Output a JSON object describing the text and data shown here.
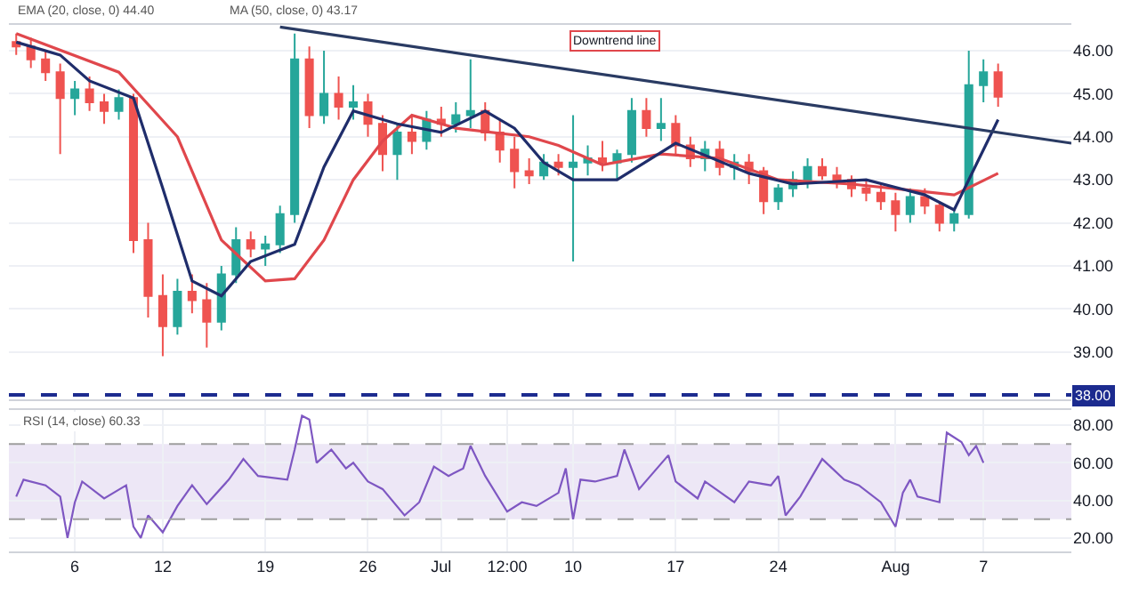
{
  "chart_data": [
    {
      "type": "candlestick",
      "x": [
        "--06-02",
        "--06-03",
        "--06-04",
        "--06-05",
        "--06-06",
        "--06-07",
        "--06-08",
        "--06-09",
        "--06-10",
        "--06-11",
        "--06-12",
        "--06-13",
        "--06-14",
        "--06-15",
        "--06-16",
        "--06-17",
        "--06-18",
        "--06-19",
        "--06-20",
        "--06-21",
        "--06-22",
        "--06-23",
        "--06-24",
        "--06-25",
        "--06-26",
        "--06-27",
        "--06-28",
        "--06-29",
        "--06-30",
        "--07-01",
        "--07-02",
        "--07-03",
        "--07-04",
        "--07-05",
        "--07-06",
        "--07-07",
        "--07-08",
        "--07-09",
        "--07-10",
        "--07-11",
        "--07-12",
        "--07-13",
        "--07-14",
        "--07-15",
        "--07-16",
        "--07-17",
        "--07-18",
        "--07-19",
        "--07-20",
        "--07-21",
        "--07-22",
        "--07-23",
        "--07-24",
        "--07-25",
        "--07-26",
        "--07-27",
        "--07-28",
        "--07-29",
        "--07-30",
        "--07-31",
        "--08-01",
        "--08-02",
        "--08-03",
        "--08-04",
        "--08-05",
        "--08-06",
        "--08-07",
        "--08-08"
      ],
      "ohlc": [
        [
          46.2,
          46.4,
          45.9,
          46.1
        ],
        [
          46.1,
          46.3,
          45.6,
          45.8
        ],
        [
          45.8,
          46.0,
          45.3,
          45.5
        ],
        [
          45.5,
          45.7,
          43.6,
          44.9
        ],
        [
          44.9,
          45.3,
          44.5,
          45.1
        ],
        [
          45.1,
          45.4,
          44.6,
          44.8
        ],
        [
          44.8,
          45.0,
          44.3,
          44.6
        ],
        [
          44.6,
          45.1,
          44.4,
          44.9
        ],
        [
          44.9,
          45.0,
          41.3,
          41.6
        ],
        [
          41.6,
          42.0,
          39.8,
          40.3
        ],
        [
          40.3,
          40.8,
          38.9,
          39.6
        ],
        [
          39.6,
          40.7,
          39.4,
          40.4
        ],
        [
          40.4,
          40.8,
          39.9,
          40.2
        ],
        [
          40.2,
          40.6,
          39.1,
          39.7
        ],
        [
          39.7,
          41.0,
          39.5,
          40.8
        ],
        [
          40.8,
          41.9,
          40.6,
          41.6
        ],
        [
          41.6,
          41.8,
          41.2,
          41.4
        ],
        [
          41.4,
          41.7,
          41.0,
          41.5
        ],
        [
          41.5,
          42.4,
          41.3,
          42.2
        ],
        [
          42.2,
          46.4,
          42.0,
          45.8
        ],
        [
          45.8,
          46.1,
          44.2,
          44.5
        ],
        [
          44.5,
          46.0,
          44.3,
          45.0
        ],
        [
          45.0,
          45.4,
          44.4,
          44.7
        ],
        [
          44.7,
          45.2,
          44.4,
          44.8
        ],
        [
          44.8,
          45.0,
          44.0,
          44.3
        ],
        [
          44.3,
          44.5,
          43.2,
          43.6
        ],
        [
          43.6,
          44.3,
          43.0,
          44.1
        ],
        [
          44.1,
          44.5,
          43.6,
          43.9
        ],
        [
          43.9,
          44.6,
          43.7,
          44.4
        ],
        [
          44.4,
          44.7,
          44.0,
          44.3
        ],
        [
          44.3,
          44.8,
          44.1,
          44.5
        ],
        [
          44.5,
          45.8,
          44.2,
          44.6
        ],
        [
          44.6,
          44.8,
          43.9,
          44.1
        ],
        [
          44.1,
          44.4,
          43.4,
          43.7
        ],
        [
          43.7,
          44.0,
          42.8,
          43.2
        ],
        [
          43.2,
          43.5,
          42.9,
          43.1
        ],
        [
          43.1,
          43.6,
          43.0,
          43.4
        ],
        [
          43.4,
          43.6,
          43.1,
          43.3
        ],
        [
          43.3,
          44.5,
          41.1,
          43.4
        ],
        [
          43.4,
          43.8,
          43.1,
          43.5
        ],
        [
          43.5,
          43.9,
          43.2,
          43.4
        ],
        [
          43.4,
          43.7,
          43.0,
          43.6
        ],
        [
          43.6,
          44.9,
          43.4,
          44.6
        ],
        [
          44.6,
          44.9,
          44.0,
          44.2
        ],
        [
          44.2,
          44.9,
          43.9,
          44.3
        ],
        [
          44.3,
          44.5,
          43.6,
          43.8
        ],
        [
          43.8,
          44.0,
          43.3,
          43.5
        ],
        [
          43.5,
          43.9,
          43.2,
          43.7
        ],
        [
          43.7,
          43.9,
          43.1,
          43.3
        ],
        [
          43.3,
          43.6,
          43.0,
          43.4
        ],
        [
          43.4,
          43.6,
          42.9,
          43.2
        ],
        [
          43.2,
          43.3,
          42.2,
          42.5
        ],
        [
          42.5,
          42.9,
          42.3,
          42.8
        ],
        [
          42.8,
          43.2,
          42.6,
          43.0
        ],
        [
          43.0,
          43.5,
          42.8,
          43.3
        ],
        [
          43.3,
          43.5,
          43.0,
          43.1
        ],
        [
          43.1,
          43.3,
          42.8,
          43.0
        ],
        [
          43.0,
          43.1,
          42.6,
          42.8
        ],
        [
          42.8,
          43.0,
          42.5,
          42.7
        ],
        [
          42.7,
          42.9,
          42.3,
          42.5
        ],
        [
          42.5,
          42.7,
          41.8,
          42.2
        ],
        [
          42.2,
          42.8,
          42.0,
          42.6
        ],
        [
          42.6,
          42.8,
          42.2,
          42.4
        ],
        [
          42.4,
          42.5,
          41.8,
          42.0
        ],
        [
          42.0,
          42.3,
          41.8,
          42.2
        ],
        [
          42.2,
          46.0,
          42.1,
          45.2
        ],
        [
          45.2,
          45.8,
          44.8,
          45.5
        ],
        [
          45.5,
          45.7,
          44.7,
          44.93
        ]
      ],
      "colors": [
        "#ef5350",
        "#ef5350",
        "#ef5350",
        "#ef5350",
        "#26a69a",
        "#ef5350",
        "#ef5350",
        "#26a69a",
        "#ef5350",
        "#ef5350",
        "#ef5350",
        "#26a69a",
        "#ef5350",
        "#ef5350",
        "#26a69a",
        "#26a69a",
        "#ef5350",
        "#26a69a",
        "#26a69a",
        "#26a69a",
        "#ef5350",
        "#26a69a",
        "#ef5350",
        "#26a69a",
        "#ef5350",
        "#ef5350",
        "#26a69a",
        "#ef5350",
        "#26a69a",
        "#ef5350",
        "#26a69a",
        "#26a69a",
        "#ef5350",
        "#ef5350",
        "#ef5350",
        "#ef5350",
        "#26a69a",
        "#ef5350",
        "#26a69a",
        "#26a69a",
        "#ef5350",
        "#26a69a",
        "#26a69a",
        "#ef5350",
        "#26a69a",
        "#ef5350",
        "#ef5350",
        "#26a69a",
        "#ef5350",
        "#26a69a",
        "#ef5350",
        "#ef5350",
        "#26a69a",
        "#26a69a",
        "#26a69a",
        "#ef5350",
        "#ef5350",
        "#ef5350",
        "#ef5350",
        "#ef5350",
        "#ef5350",
        "#26a69a",
        "#ef5350",
        "#ef5350",
        "#26a69a",
        "#26a69a",
        "#26a69a",
        "#ef5350"
      ],
      "series": [
        {
          "type": "line",
          "color": "#e0474c",
          "x": [
            "--06-02",
            "--06-09",
            "--06-13",
            "--06-16",
            "--06-19",
            "--06-21",
            "--06-23",
            "--06-25",
            "--06-27",
            "--06-29",
            "--07-02",
            "--07-07",
            "--07-09",
            "--07-12",
            "--07-16",
            "--07-20",
            "--07-24",
            "--07-29",
            "--08-05",
            "--08-08"
          ],
          "values": [
            46.4,
            45.5,
            44.0,
            41.6,
            40.65,
            40.7,
            41.6,
            43.0,
            43.9,
            44.5,
            44.2,
            44.0,
            43.8,
            43.35,
            43.6,
            43.5,
            43.0,
            42.9,
            42.65,
            43.15
          ]
        },
        {
          "type": "line",
          "color": "#1f2d6b",
          "x": [
            "--06-02",
            "--06-05",
            "--06-07",
            "--06-10",
            "--06-12",
            "--06-14",
            "--06-16",
            "--06-18",
            "--06-21",
            "--06-23",
            "--06-25",
            "--06-28",
            "--07-01",
            "--07-04",
            "--07-06",
            "--07-08",
            "--07-10",
            "--07-13",
            "--07-17",
            "--07-22",
            "--07-25",
            "--07-30",
            "--08-03",
            "--08-05",
            "--08-08"
          ],
          "values": [
            46.2,
            45.9,
            45.3,
            44.9,
            42.8,
            40.65,
            40.3,
            41.1,
            41.5,
            43.3,
            44.6,
            44.3,
            44.1,
            44.6,
            44.2,
            43.4,
            43.0,
            43.0,
            43.85,
            43.15,
            42.9,
            43.0,
            42.65,
            42.3,
            44.4
          ]
        },
        {
          "type": "line",
          "color": "#2a3b63",
          "x": [
            "--06-20",
            "--08-13"
          ],
          "values": [
            46.55,
            43.85
          ]
        }
      ],
      "xlim": [
        "--06-01T12:00",
        "--08-13"
      ],
      "ylim": [
        37.9,
        46.6
      ],
      "yticks": [
        {
          "value": 39,
          "label": "39.00"
        },
        {
          "value": 40,
          "label": "40.00"
        },
        {
          "value": 41,
          "label": "41.00"
        },
        {
          "value": 42,
          "label": "42.00"
        },
        {
          "value": 43,
          "label": "43.00"
        },
        {
          "value": 44,
          "label": "44.00"
        },
        {
          "value": 45,
          "label": "45.00"
        },
        {
          "value": 46,
          "label": "46.00"
        }
      ],
      "ref_lines": [
        {
          "axis": "y",
          "value": 38,
          "label": "38.00",
          "color": "#1c2b8f",
          "line_style": "dashed"
        }
      ],
      "annotations": [
        "EMA (20, close, 0) 44.40",
        "MA (50, close, 0) 43.17",
        "Downtrend line"
      ],
      "grid": true,
      "tick_labels": "y"
    },
    {
      "type": "line",
      "x": [
        "--06-02",
        "--06-02T12:00",
        "--06-04",
        "--06-05",
        "--06-05T12:00",
        "--06-06",
        "--06-06T12:00",
        "--06-08",
        "--06-09T12:00",
        "--06-10",
        "--06-10T12:00",
        "--06-11",
        "--06-12",
        "--06-13",
        "--06-14",
        "--06-15",
        "--06-16T12:00",
        "--06-17T12:00",
        "--06-18T12:00",
        "--06-20T12:00",
        "--06-21",
        "--06-21T12:00",
        "--06-22",
        "--06-22T12:00",
        "--06-23T12:00",
        "--06-24T12:00",
        "--06-25",
        "--06-26",
        "--06-27",
        "--06-28T12:00",
        "--06-29T12:00",
        "--06-30T12:00",
        "--07-01T12:00",
        "--07-02T12:00",
        "--07-03",
        "--07-04",
        "--07-05T12:00",
        "--07-06T12:00",
        "--07-07T12:00",
        "--07-09",
        "--07-09T12:00",
        "--07-10",
        "--07-10T12:00",
        "--07-11T12:00",
        "--07-13",
        "--07-13T12:00",
        "--07-14T12:00",
        "--07-16T12:00",
        "--07-17",
        "--07-18T12:00",
        "--07-19",
        "--07-21",
        "--07-22",
        "--07-23T12:00",
        "--07-24",
        "--07-24T12:00",
        "--07-25T12:00",
        "--07-27",
        "--07-28T12:00",
        "--07-29T12:00",
        "--07-31",
        "--08-01",
        "--08-01T12:00",
        "--08-02",
        "--08-02T12:00",
        "--08-04",
        "--08-04T12:00",
        "--08-05T12:00",
        "--08-06",
        "--08-06T12:00",
        "--08-07"
      ],
      "values": [
        42,
        51,
        48,
        42,
        20,
        39,
        50,
        41,
        48,
        26,
        20,
        32,
        23,
        37,
        48,
        38,
        51,
        62,
        53,
        51,
        67,
        85,
        83,
        60,
        67,
        57,
        60,
        50,
        46,
        32,
        39,
        58,
        53,
        57,
        69,
        53,
        34,
        39,
        37,
        44,
        57,
        30,
        51,
        50,
        53,
        67,
        46,
        64,
        50,
        41,
        50,
        39,
        50,
        48,
        53,
        32,
        42,
        62,
        51,
        48,
        39,
        26,
        44,
        51,
        42,
        39,
        76,
        71,
        64,
        69,
        60
      ],
      "color": "#7e57c2",
      "xlim": [
        "--06-01T12:00",
        "--08-13"
      ],
      "xticks": [
        {
          "value": "--06-06",
          "label": "6"
        },
        {
          "value": "--06-12",
          "label": "12"
        },
        {
          "value": "--06-19",
          "label": "19"
        },
        {
          "value": "--06-26",
          "label": "26"
        },
        {
          "value": "--07-01",
          "label": "Jul"
        },
        {
          "value": "--07-05T12:00",
          "label": "12:00"
        },
        {
          "value": "--07-10",
          "label": "10"
        },
        {
          "value": "--07-17",
          "label": "17"
        },
        {
          "value": "--07-24",
          "label": "24"
        },
        {
          "value": "--08-01",
          "label": "Aug"
        },
        {
          "value": "--08-07",
          "label": "7"
        }
      ],
      "ylim": [
        13,
        88
      ],
      "yticks": [
        {
          "value": 20,
          "label": "20.00"
        },
        {
          "value": 40,
          "label": "40.00"
        },
        {
          "value": 60,
          "label": "60.00"
        },
        {
          "value": 80,
          "label": "80.00"
        }
      ],
      "bands": [
        {
          "axis": "y",
          "from": 30,
          "to": 70,
          "color": "#ede7f6"
        }
      ],
      "ref_lines": [
        {
          "axis": "y",
          "value": 70,
          "color": "#9e9e9e",
          "line_style": "dashed"
        },
        {
          "axis": "y",
          "value": 30,
          "color": "#9e9e9e",
          "line_style": "dashed"
        }
      ],
      "annotations": [
        "RSI (14, close) 60.33"
      ],
      "grid": true
    }
  ]
}
